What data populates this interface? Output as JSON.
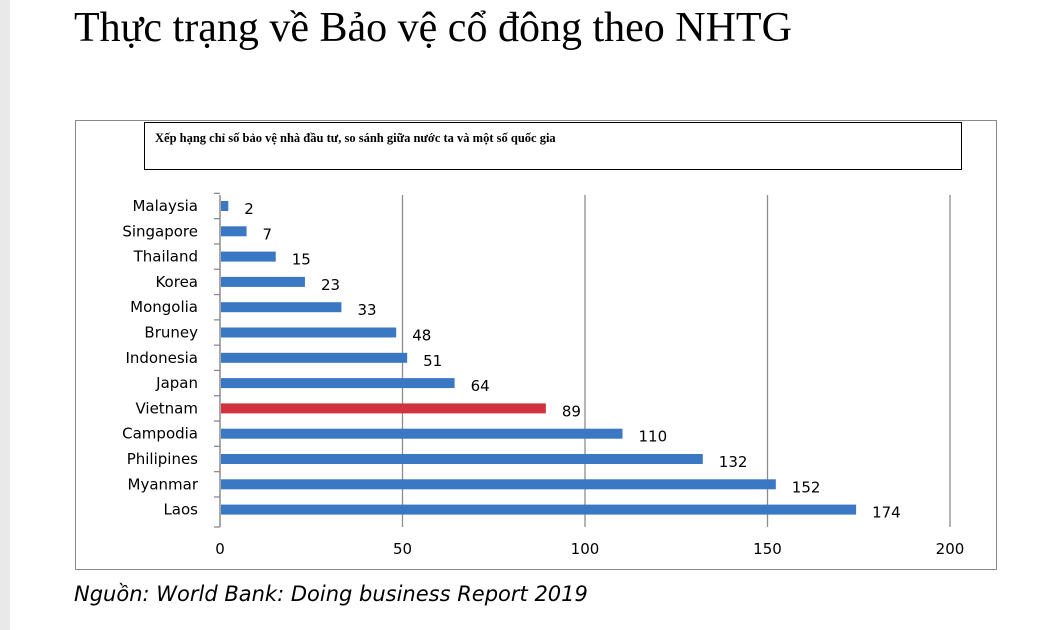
{
  "slide": {
    "title": "Thực trạng về Bảo vệ cổ đông theo NHTG",
    "source": "Nguồn: World Bank: Doing business Report 2019"
  },
  "colors": {
    "bar_default": "#3a78c4",
    "bar_highlight": "#d0323e",
    "gridline": "#8c8c8c"
  },
  "chart_data": {
    "type": "bar",
    "orientation": "horizontal",
    "title": "Xếp hạng chỉ số bảo vệ nhà đầu tư, so sánh giữa nước ta và một số quốc gia",
    "categories": [
      "Malaysia",
      "Singapore",
      "Thailand",
      "Korea",
      "Mongolia",
      "Bruney",
      "Indonesia",
      "Japan",
      "Vietnam",
      "Campodia",
      "Philipines",
      "Myanmar",
      "Laos"
    ],
    "values": [
      2,
      7,
      15,
      23,
      33,
      48,
      51,
      64,
      89,
      110,
      132,
      152,
      174
    ],
    "highlight": "Vietnam",
    "xlim": [
      0,
      200
    ],
    "xticks": [
      0,
      50,
      100,
      150,
      200
    ],
    "grid": true,
    "xlabel": "",
    "ylabel": ""
  }
}
